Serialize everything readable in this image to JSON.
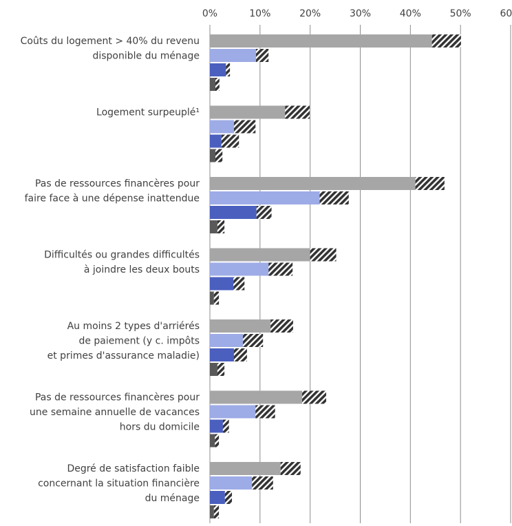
{
  "chart_data": {
    "type": "bar",
    "orientation": "horizontal",
    "categories": [
      [
        "Coûts du logement > 40% du revenu",
        "disponible du ménage"
      ],
      [
        "Logement surpeuplé¹"
      ],
      [
        "Pas de ressources financères pour",
        "faire face à une dépense inattendue"
      ],
      [
        "Difficultés ou grandes difficultés",
        "à joindre les deux bouts"
      ],
      [
        "Au moins 2 types d'arriérés",
        "de paiement (y c. impôts",
        "et primes d'assurance maladie)"
      ],
      [
        "Pas de ressources financères pour",
        "une semaine annuelle de vacances",
        "hors du domicile"
      ],
      [
        "Degré de satisfaction faible",
        "concernant la situation financière",
        "du ménage"
      ]
    ],
    "series": [
      {
        "color": "#a6a6a6",
        "values": [
          44.3,
          15.0,
          41.0,
          20.0,
          12.1,
          18.4,
          14.1
        ],
        "hatch": [
          5.8,
          4.9,
          5.8,
          5.2,
          4.5,
          4.8,
          4.0
        ]
      },
      {
        "color": "#9dabe6",
        "values": [
          9.2,
          4.8,
          21.9,
          11.7,
          6.6,
          9.1,
          8.4
        ],
        "hatch": [
          2.5,
          4.3,
          5.8,
          4.8,
          4.0,
          3.9,
          4.2
        ]
      },
      {
        "color": "#4b5fbf",
        "values": [
          3.2,
          2.3,
          9.3,
          4.7,
          4.8,
          2.6,
          3.0
        ],
        "hatch": [
          0.8,
          3.5,
          3.0,
          2.2,
          2.6,
          1.2,
          1.4
        ]
      },
      {
        "color": "#595959",
        "values": [
          1.1,
          1.1,
          1.5,
          0.8,
          1.5,
          1.0,
          0.8
        ],
        "hatch": [
          0.8,
          1.4,
          1.4,
          1.0,
          1.4,
          0.8,
          1.0
        ]
      }
    ],
    "hatch_color": "#333333",
    "xlim": [
      0,
      60
    ],
    "xticks": [
      {
        "value": 0,
        "label": "0%"
      },
      {
        "value": 10,
        "label": "10%"
      },
      {
        "value": 20,
        "label": "20%"
      },
      {
        "value": 30,
        "label": "30%"
      },
      {
        "value": 40,
        "label": "40%"
      },
      {
        "value": 50,
        "label": "50%"
      },
      {
        "value": 60,
        "label": "60%"
      }
    ],
    "grid": true
  }
}
